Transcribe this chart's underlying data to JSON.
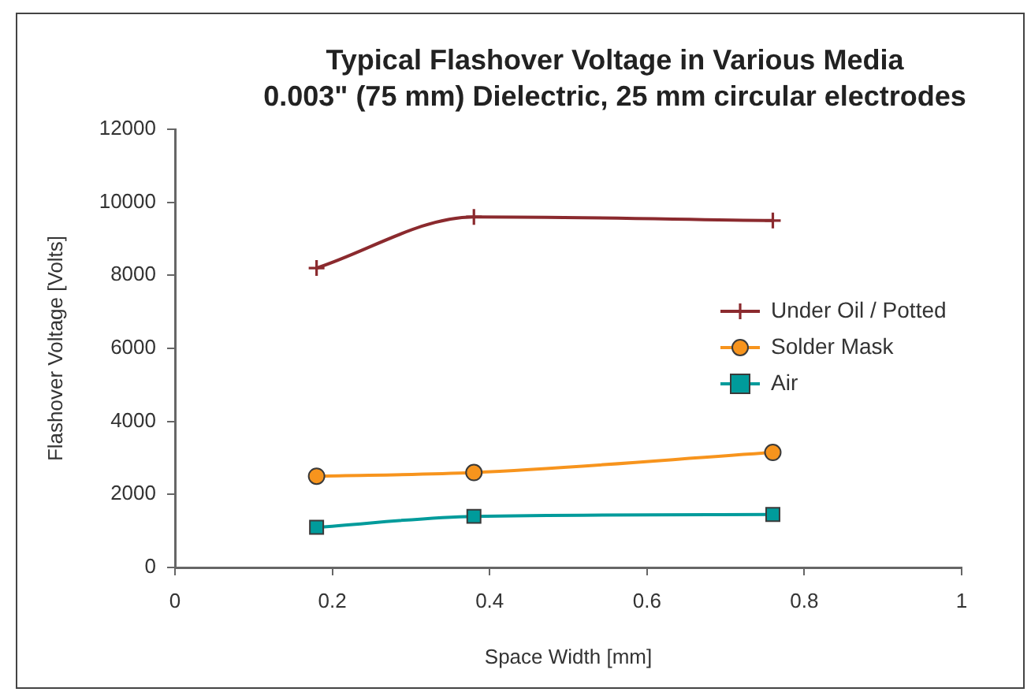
{
  "chart_data": {
    "type": "line",
    "title": "Typical Flashover Voltage in Various Media",
    "subtitle": "0.003\" (75 mm) Dielectric, 25 mm circular electrodes",
    "xlabel": "Space Width [mm]",
    "ylabel": "Flashover Voltage [Volts]",
    "x": [
      0.18,
      0.38,
      0.76
    ],
    "series": [
      {
        "name": "Under Oil / Potted",
        "color": "#8b2a2e",
        "values": [
          8200,
          9600,
          9500
        ],
        "marker": "cross"
      },
      {
        "name": "Solder Mask",
        "color": "#f7941d",
        "values": [
          2500,
          2600,
          3150
        ],
        "marker": "circle"
      },
      {
        "name": "Air",
        "color": "#009b9b",
        "values": [
          1100,
          1400,
          1450
        ],
        "marker": "square"
      }
    ],
    "xlim": [
      0,
      1
    ],
    "xticks": [
      0,
      0.2,
      0.4,
      0.6,
      0.8,
      1
    ],
    "ylim": [
      0,
      12000
    ],
    "yticks": [
      0,
      2000,
      4000,
      6000,
      8000,
      10000,
      12000
    ],
    "grid": false,
    "legend": "right"
  }
}
